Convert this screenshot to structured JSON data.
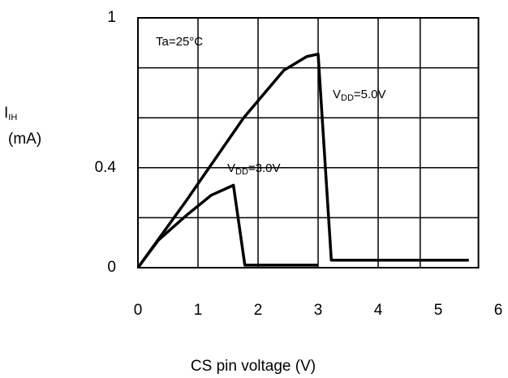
{
  "chart_data": {
    "type": "line",
    "xlabel": "CS pin voltage (V)",
    "ylabel": {
      "main": "I",
      "sub": "IH",
      "unit": "(mA)"
    },
    "annotation": "Ta=25°C",
    "series": [
      {
        "name": {
          "main": "V",
          "sub": "DD",
          "rest": "=5.0V"
        },
        "color": "#000000",
        "x": [
          0,
          0.81,
          1.76,
          2.43,
          2.81,
          3.0,
          3.22,
          5.51
        ],
        "values": [
          0,
          0.27,
          0.6,
          0.79,
          0.845,
          0.855,
          0.03,
          0.03
        ]
      },
      {
        "name": {
          "main": "V",
          "sub": "DD",
          "rest": "=3.0V"
        },
        "color": "#000000",
        "x": [
          0,
          0.34,
          0.81,
          1.22,
          1.59,
          1.78,
          3.0
        ],
        "values": [
          0,
          0.11,
          0.21,
          0.29,
          0.33,
          0.01,
          0.01
        ]
      }
    ],
    "xlim": [
      0,
      5.67
    ],
    "ylim": [
      0,
      1
    ],
    "xticks": [
      0,
      1,
      2,
      3,
      4,
      5,
      6
    ],
    "yticks": [
      0,
      0.4,
      1
    ],
    "xgrid": [
      1,
      2,
      3,
      4,
      4.7
    ],
    "ygrid": [
      0.2,
      0.4,
      0.6,
      0.8
    ],
    "grid": true
  }
}
